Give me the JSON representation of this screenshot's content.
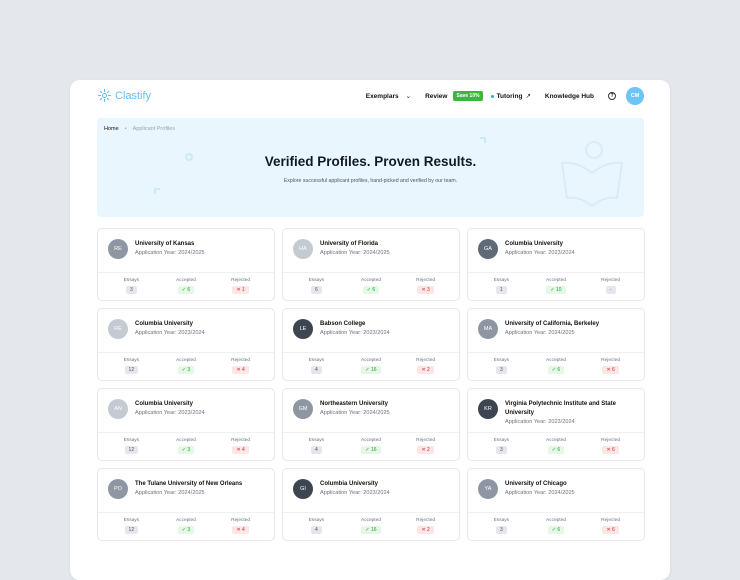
{
  "header": {
    "logo": "Clastify",
    "nav": {
      "exemplars": "Exemplars",
      "review": "Review",
      "save_badge": "Save 10%",
      "tutoring": "Tutoring",
      "knowledge_hub": "Knowledge Hub",
      "help": "?",
      "user_initials": "CM"
    }
  },
  "breadcrumb": {
    "home": "Home",
    "current": "Applicant Profiles"
  },
  "hero": {
    "title": "Verified Profiles. Proven Results.",
    "subtitle": "Explore successful applicant profiles, hand-picked and verified by our team."
  },
  "stat_labels": {
    "essays": "Essays",
    "accepted": "Accepted",
    "rejected": "Rejected"
  },
  "colors": {
    "light": "#c4cad2",
    "mid": "#8d96a2",
    "dark": "#3d4550",
    "slate": "#5f6977"
  },
  "profiles": [
    {
      "initials": "RE",
      "tone": "mid",
      "university": "University of Kansas",
      "year": "Application Year: 2024/2025",
      "essays": "3",
      "accepted": "6",
      "rejected": "1"
    },
    {
      "initials": "HA",
      "tone": "light",
      "university": "University of Florida",
      "year": "Application Year: 2024/2025",
      "essays": "6",
      "accepted": "6",
      "rejected": "3"
    },
    {
      "initials": "GA",
      "tone": "slate",
      "university": "Columbia University",
      "year": "Application Year: 2023/2024",
      "essays": "1",
      "accepted": "10",
      "rejected": "-"
    },
    {
      "initials": "RE",
      "tone": "light",
      "university": "Columbia University",
      "year": "Application Year: 2023/2024",
      "essays": "12",
      "accepted": "3",
      "rejected": "4"
    },
    {
      "initials": "LE",
      "tone": "dark",
      "university": "Babson College",
      "year": "Application Year: 2023/2024",
      "essays": "4",
      "accepted": "16",
      "rejected": "2"
    },
    {
      "initials": "MA",
      "tone": "mid",
      "university": "University of California, Berkeley",
      "year": "Application Year: 2024/2025",
      "essays": "3",
      "accepted": "6",
      "rejected": "6"
    },
    {
      "initials": "AN",
      "tone": "light",
      "university": "Columbia University",
      "year": "Application Year: 2023/2024",
      "essays": "12",
      "accepted": "3",
      "rejected": "4"
    },
    {
      "initials": "GM",
      "tone": "mid",
      "university": "Northeastern University",
      "year": "Application Year: 2024/2025",
      "essays": "4",
      "accepted": "16",
      "rejected": "2"
    },
    {
      "initials": "KR",
      "tone": "dark",
      "university": "Virginia Polytechnic Institute and State University",
      "year": "Application Year: 2023/2024",
      "essays": "3",
      "accepted": "6",
      "rejected": "6"
    },
    {
      "initials": "PO",
      "tone": "mid",
      "university": "The Tulane University of New Orleans",
      "year": "Application Year: 2024/2025",
      "essays": "12",
      "accepted": "3",
      "rejected": "4"
    },
    {
      "initials": "GI",
      "tone": "dark",
      "university": "Columbia University",
      "year": "Application Year: 2023/2024",
      "essays": "4",
      "accepted": "16",
      "rejected": "2"
    },
    {
      "initials": "YA",
      "tone": "mid",
      "university": "University of Chicago",
      "year": "Application Year: 2024/2025",
      "essays": "3",
      "accepted": "6",
      "rejected": "6"
    }
  ]
}
